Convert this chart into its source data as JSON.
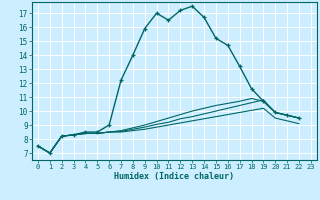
{
  "xlabel": "Humidex (Indice chaleur)",
  "bg_color": "#cceeff",
  "grid_color": "#ffffff",
  "line_color": "#006666",
  "xlim": [
    -0.5,
    23.5
  ],
  "ylim": [
    6.5,
    17.8
  ],
  "xticks": [
    0,
    1,
    2,
    3,
    4,
    5,
    6,
    7,
    8,
    9,
    10,
    11,
    12,
    13,
    14,
    15,
    16,
    17,
    18,
    19,
    20,
    21,
    22,
    23
  ],
  "yticks": [
    7,
    8,
    9,
    10,
    11,
    12,
    13,
    14,
    15,
    16,
    17
  ],
  "x_vals": [
    0,
    1,
    2,
    3,
    4,
    5,
    6,
    7,
    8,
    9,
    10,
    11,
    12,
    13,
    14,
    15,
    16,
    17,
    18,
    19,
    20,
    21,
    22
  ],
  "series_main": [
    7.5,
    7.0,
    8.2,
    8.3,
    8.5,
    8.5,
    9.0,
    12.2,
    14.0,
    15.9,
    17.0,
    16.5,
    17.2,
    17.5,
    16.7,
    15.2,
    14.7,
    13.2,
    11.6,
    10.7,
    9.9,
    9.7,
    9.5
  ],
  "series_flat1": [
    7.5,
    7.0,
    8.2,
    8.3,
    8.4,
    8.4,
    8.5,
    8.5,
    8.6,
    8.7,
    8.85,
    9.0,
    9.15,
    9.3,
    9.45,
    9.6,
    9.75,
    9.9,
    10.05,
    10.2,
    9.5,
    9.3,
    9.1
  ],
  "series_flat2": [
    7.5,
    7.0,
    8.2,
    8.3,
    8.4,
    8.4,
    8.5,
    8.55,
    8.7,
    8.85,
    9.05,
    9.2,
    9.45,
    9.6,
    9.8,
    10.0,
    10.2,
    10.4,
    10.6,
    10.8,
    9.9,
    9.7,
    9.5
  ],
  "series_flat3": [
    7.5,
    7.0,
    8.2,
    8.3,
    8.4,
    8.4,
    8.5,
    8.6,
    8.8,
    9.0,
    9.25,
    9.5,
    9.75,
    10.0,
    10.2,
    10.4,
    10.55,
    10.7,
    10.9,
    10.7,
    9.9,
    9.7,
    9.5
  ]
}
